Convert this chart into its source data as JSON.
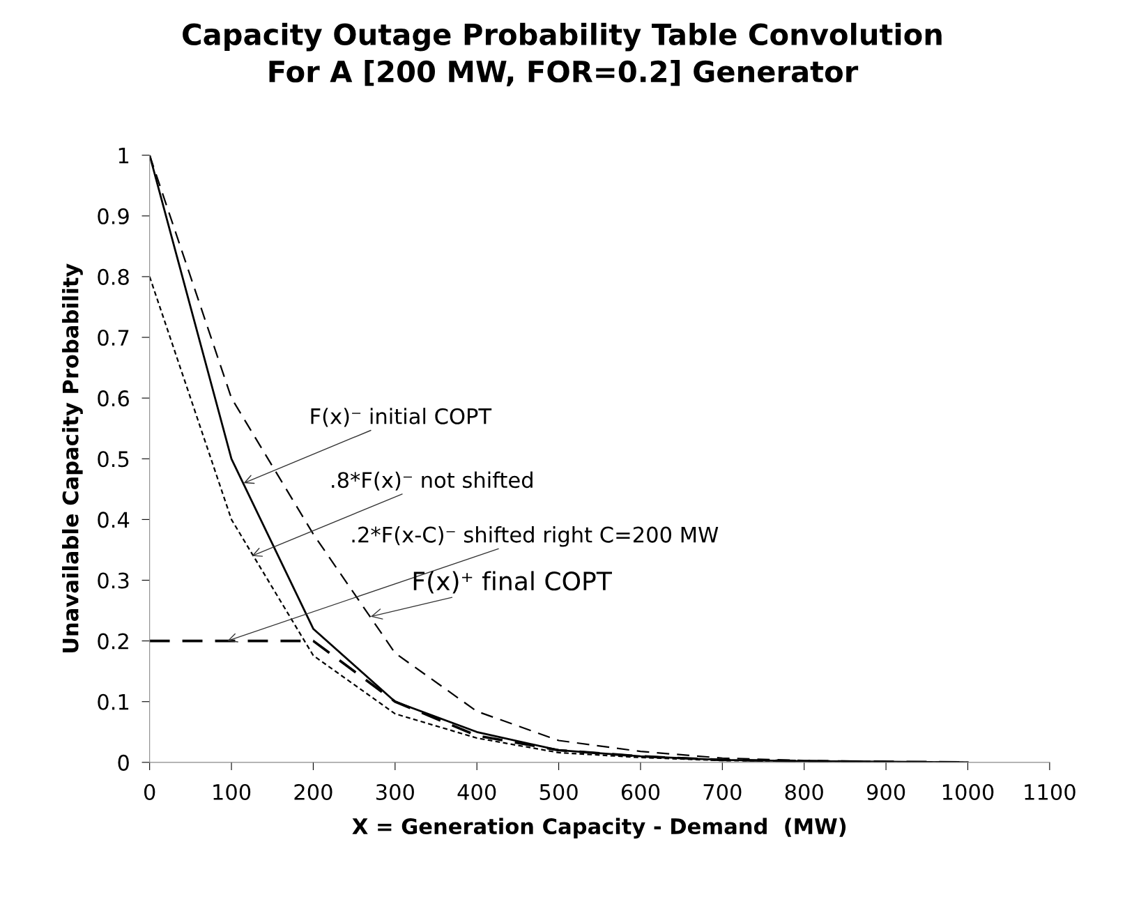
{
  "chart_data": {
    "type": "line",
    "title": "Capacity Outage Probability Table Convolution\nFor A [200 MW, FOR=0.2] Generator",
    "xlabel": "X = Generation Capacity - Demand  (MW)",
    "ylabel": "Unavailable Capacity Probability",
    "x": [
      0,
      100,
      200,
      300,
      400,
      500,
      600,
      700,
      800,
      900,
      1000
    ],
    "series": [
      {
        "color": "#000000",
        "line_style": "solid",
        "values": [
          1,
          0.5,
          0.22,
          0.1,
          0.05,
          0.02,
          0.01,
          0.004,
          0.002,
          0.001,
          0
        ]
      },
      {
        "color": "#000000",
        "line_style": "dotted",
        "values": [
          0.8,
          0.4,
          0.176,
          0.08,
          0.04,
          0.016,
          0.008,
          0.003,
          0.002,
          0.001,
          0
        ]
      },
      {
        "color": "#000000",
        "line_style": "dashed",
        "values": [
          0.2,
          0.2,
          0.2,
          0.1,
          0.044,
          0.02,
          0.01,
          0.004,
          0.002,
          0.001,
          0
        ]
      },
      {
        "color": "#000000",
        "line_style": "dashed",
        "values": [
          1,
          0.6,
          0.376,
          0.18,
          0.084,
          0.036,
          0.018,
          0.007,
          0.003,
          0.001,
          0
        ]
      }
    ],
    "annotations": [
      {
        "text": "F(x)⁻ initial COPT",
        "x": 115,
        "y": 0.46
      },
      {
        "text": ".8*F(x)⁻ not shifted",
        "x": 125,
        "y": 0.34
      },
      {
        "text": ".2*F(x-C)⁻ shifted right C=200 MW",
        "x": 95,
        "y": 0.2
      },
      {
        "text": "F(x)⁺ final COPT",
        "x": 270,
        "y": 0.24
      }
    ],
    "xlim": [
      0,
      1100
    ],
    "xticks": [
      0,
      100,
      200,
      300,
      400,
      500,
      600,
      700,
      800,
      900,
      1000,
      1100
    ],
    "ylim": [
      0,
      1
    ],
    "yticks": [
      0,
      0.1,
      0.2,
      0.3,
      0.4,
      0.5,
      0.6,
      0.7,
      0.8,
      0.9,
      1
    ],
    "grid": false,
    "legend": false,
    "marker": "none"
  }
}
